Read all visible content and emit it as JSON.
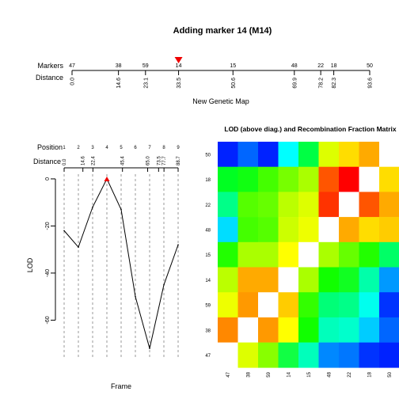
{
  "title": "Adding marker 14 (M14)",
  "map": {
    "row_labels": {
      "markers": "Markers",
      "distance": "Distance"
    },
    "markers": [
      "47",
      "38",
      "59",
      "14",
      "15",
      "48",
      "22",
      "18",
      "50"
    ],
    "distances": [
      0.0,
      14.6,
      23.1,
      33.5,
      50.6,
      69.9,
      78.2,
      82.3,
      93.6
    ],
    "distance_labels": [
      "0.0",
      "14.6",
      "23.1",
      "33.5",
      "50.6",
      "69.9",
      "78.2",
      "82.3",
      "93.6"
    ],
    "xlabel": "New Genetic Map",
    "added_marker": "14",
    "arrow_color": "#ee0000"
  },
  "chart_data": [
    {
      "type": "line",
      "row_labels": {
        "position": "Position",
        "distance": "Distance"
      },
      "positions": [
        "1",
        "2",
        "3",
        "4",
        "5",
        "6",
        "7",
        "8",
        "9"
      ],
      "distances": [
        0.0,
        14.6,
        22.4,
        45.4,
        65.0,
        73.5,
        77.7,
        88.7
      ],
      "distance_labels": [
        "0.0",
        "14.6",
        "22.4",
        "45.4",
        "65.0",
        "73.5",
        "77.7",
        "88.7"
      ],
      "x": [
        1,
        2,
        3,
        4,
        5,
        6,
        7,
        8,
        9
      ],
      "values": [
        -22,
        -29,
        -12,
        0,
        -13,
        -50,
        -72,
        -45,
        -28
      ],
      "xlabel": "Frame",
      "ylabel": "LOD",
      "ylim": [
        -76,
        2
      ],
      "yticks": [
        0,
        -20,
        -40,
        -60
      ],
      "max_marker_color": "#ee0000"
    },
    {
      "type": "heatmap",
      "title": "LOD (above diag.) and Recombination Fraction Matrix",
      "row_labels": [
        "50",
        "18",
        "22",
        "48",
        "15",
        "14",
        "59",
        "38",
        "47"
      ],
      "col_labels": [
        "47",
        "38",
        "59",
        "14",
        "15",
        "48",
        "22",
        "18",
        "50"
      ],
      "colors": [
        [
          "#0022ff",
          "#0066ff",
          "#0022ff",
          "#00ffff",
          "#00ff44",
          "#ddff00",
          "#ffdd00",
          "#ffaa00",
          null
        ],
        [
          "#00ff22",
          "#11ff11",
          "#44ff00",
          "#77ff00",
          "#aaff00",
          "#ff5500",
          "#ff0000",
          null,
          "#ffdd00"
        ],
        [
          "#00ff88",
          "#55ff00",
          "#66ff00",
          "#bbff00",
          "#ddff00",
          "#ff3300",
          null,
          "#ff5500",
          "#ffaa00"
        ],
        [
          "#00ddff",
          "#44ff00",
          "#55ff00",
          "#ccff00",
          "#eeff00",
          null,
          "#ffaa00",
          "#ffdd00",
          "#ffcc00"
        ],
        [
          "#22ff00",
          "#aaff00",
          "#aaff00",
          "#ffff00",
          null,
          "#aaff00",
          "#66ff00",
          "#22ff00",
          "#00ff66"
        ],
        [
          "#bbff00",
          "#ffaa00",
          "#ffaa00",
          null,
          "#aaff00",
          "#11ff00",
          "#11ff22",
          "#00ffaa",
          "#0099ff"
        ],
        [
          "#eeff00",
          "#ff9900",
          null,
          "#ffcc00",
          "#33ff00",
          "#00ff77",
          "#00ff88",
          "#00ffee",
          "#0033ff"
        ],
        [
          "#ff8800",
          null,
          "#ff9900",
          "#ffff00",
          "#11ff00",
          "#00ffbb",
          "#00ffcc",
          "#00ccff",
          "#0066ff"
        ],
        [
          null,
          "#ddff00",
          "#88ff00",
          "#11ff44",
          "#00ffbb",
          "#0088ff",
          "#0077ff",
          "#0033ff",
          "#0022ff"
        ]
      ]
    }
  ]
}
